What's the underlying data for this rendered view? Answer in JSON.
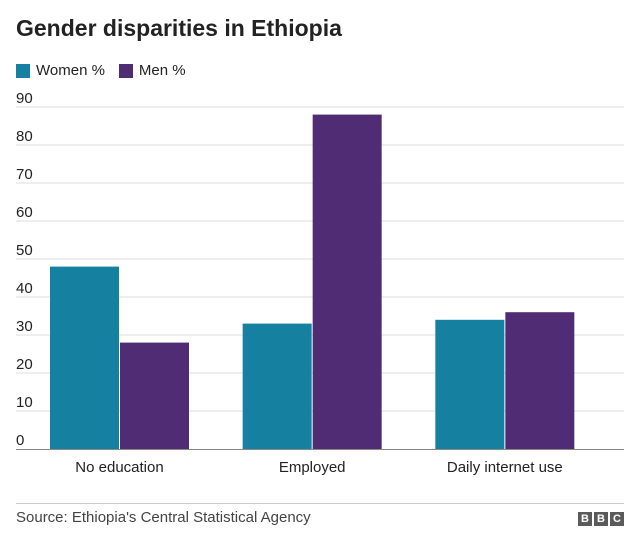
{
  "chart_data": {
    "type": "bar",
    "title": "Gender disparities in Ethiopia",
    "categories": [
      "No education",
      "Employed",
      "Daily internet use"
    ],
    "series": [
      {
        "name": "Women %",
        "color": "#1580a0",
        "values": [
          48,
          33,
          34
        ]
      },
      {
        "name": "Men %",
        "color": "#4f2c73",
        "values": [
          28,
          88,
          36
        ]
      }
    ],
    "ylim": [
      0,
      90
    ],
    "yticks": [
      0,
      10,
      20,
      30,
      40,
      50,
      60,
      70,
      80,
      90
    ],
    "xlabel": "",
    "ylabel": "",
    "legend_position": "top-left"
  },
  "footer": {
    "source": "Source: Ethiopia's Central Statistical Agency",
    "brand_letters": [
      "B",
      "B",
      "C"
    ]
  }
}
